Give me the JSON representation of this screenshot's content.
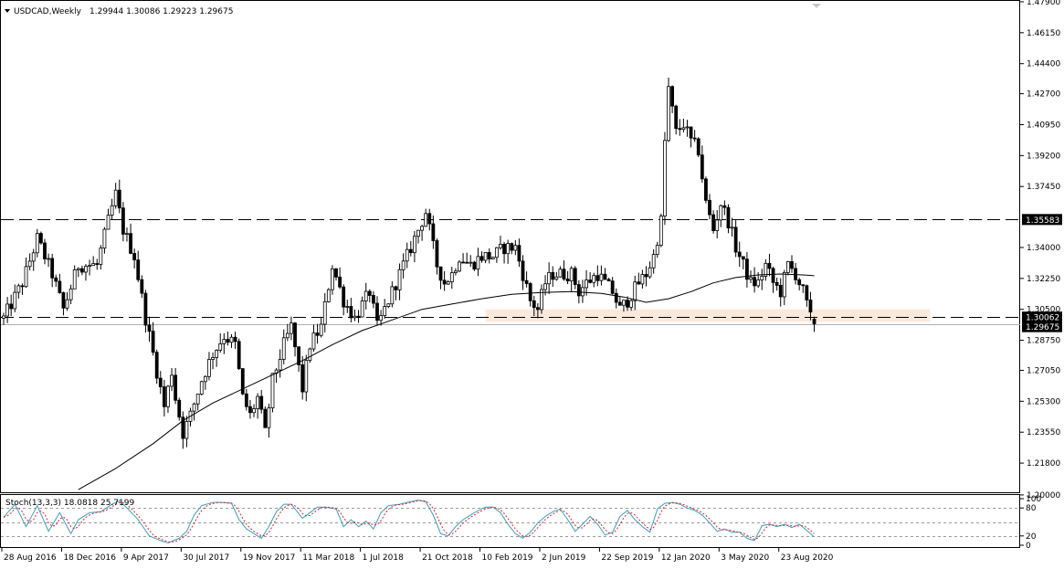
{
  "header": {
    "symbol": "USDCAD,Weekly",
    "ohlc": "1.29944 1.30086 1.29223 1.29675"
  },
  "colors": {
    "background": "#ffffff",
    "frame": "#000000",
    "candle_up_body": "#ffffff",
    "candle_down_body": "#000000",
    "candle_outline": "#000000",
    "moving_average": "#000000",
    "support_zone": "#fbe9dc",
    "stoch_main": "#3b9ec0",
    "stoch_signal": "#e0202a",
    "stoch_levels": "#9a9a9a",
    "price_label_bg": "#000000",
    "price_label_text": "#ffffff"
  },
  "chart_data": [
    {
      "type": "candlestick",
      "title": "USDCAD,Weekly",
      "timeframe": "Weekly",
      "ylim": [
        1.2015,
        1.4795
      ],
      "y_ticks": [
        "1.47900",
        "1.46150",
        "1.44400",
        "1.42700",
        "1.40950",
        "1.39200",
        "1.37450",
        "1.35583",
        "1.34000",
        "1.32250",
        "1.30500",
        "1.30062",
        "1.29675",
        "1.28750",
        "1.27050",
        "1.25300",
        "1.23550",
        "1.21800",
        "1.20000"
      ],
      "x_labels": [
        "28 Aug 2016",
        "18 Dec 2016",
        "9 Apr 2017",
        "30 Jul 2017",
        "19 Nov 2017",
        "11 Mar 2018",
        "1 Jul 2018",
        "21 Oct 2018",
        "10 Feb 2019",
        "2 Jun 2019",
        "22 Sep 2019",
        "12 Jan 2020",
        "3 May 2020",
        "23 Aug 2020"
      ],
      "x_label_start_week": [
        0,
        16,
        32,
        48,
        64,
        80,
        96,
        112,
        128,
        144,
        160,
        176,
        192,
        208
      ],
      "last_candle": {
        "open": 1.29944,
        "high": 1.30086,
        "low": 1.29223,
        "close": 1.29675
      },
      "price_path": [
        [
          0,
          1.3
        ],
        [
          5,
          1.32
        ],
        [
          9,
          1.345
        ],
        [
          13,
          1.325
        ],
        [
          16,
          1.305
        ],
        [
          20,
          1.33
        ],
        [
          25,
          1.33
        ],
        [
          28,
          1.355
        ],
        [
          30,
          1.37
        ],
        [
          32,
          1.35
        ],
        [
          35,
          1.335
        ],
        [
          38,
          1.3
        ],
        [
          40,
          1.28
        ],
        [
          43,
          1.25
        ],
        [
          45,
          1.27
        ],
        [
          46,
          1.255
        ],
        [
          48,
          1.235
        ],
        [
          50,
          1.245
        ],
        [
          53,
          1.265
        ],
        [
          56,
          1.28
        ],
        [
          59,
          1.29
        ],
        [
          62,
          1.285
        ],
        [
          64,
          1.255
        ],
        [
          66,
          1.245
        ],
        [
          68,
          1.255
        ],
        [
          70,
          1.235
        ],
        [
          72,
          1.265
        ],
        [
          75,
          1.285
        ],
        [
          77,
          1.295
        ],
        [
          80,
          1.26
        ],
        [
          82,
          1.285
        ],
        [
          85,
          1.295
        ],
        [
          88,
          1.33
        ],
        [
          91,
          1.31
        ],
        [
          94,
          1.3
        ],
        [
          98,
          1.315
        ],
        [
          100,
          1.295
        ],
        [
          103,
          1.31
        ],
        [
          106,
          1.325
        ],
        [
          109,
          1.34
        ],
        [
          111,
          1.35
        ],
        [
          113,
          1.36
        ],
        [
          114,
          1.35
        ],
        [
          116,
          1.33
        ],
        [
          118,
          1.32
        ],
        [
          120,
          1.325
        ],
        [
          122,
          1.335
        ],
        [
          125,
          1.33
        ],
        [
          128,
          1.335
        ],
        [
          131,
          1.335
        ],
        [
          134,
          1.34
        ],
        [
          137,
          1.34
        ],
        [
          139,
          1.325
        ],
        [
          141,
          1.31
        ],
        [
          143,
          1.305
        ],
        [
          145,
          1.32
        ],
        [
          147,
          1.325
        ],
        [
          150,
          1.325
        ],
        [
          152,
          1.325
        ],
        [
          154,
          1.315
        ],
        [
          156,
          1.32
        ],
        [
          159,
          1.325
        ],
        [
          161,
          1.32
        ],
        [
          163,
          1.315
        ],
        [
          165,
          1.305
        ],
        [
          167,
          1.31
        ],
        [
          170,
          1.32
        ],
        [
          172,
          1.325
        ],
        [
          174,
          1.335
        ],
        [
          176,
          1.355
        ],
        [
          177,
          1.4
        ],
        [
          178,
          1.43
        ],
        [
          180,
          1.405
        ],
        [
          182,
          1.41
        ],
        [
          184,
          1.4
        ],
        [
          186,
          1.395
        ],
        [
          188,
          1.365
        ],
        [
          190,
          1.35
        ],
        [
          192,
          1.365
        ],
        [
          194,
          1.355
        ],
        [
          196,
          1.34
        ],
        [
          198,
          1.33
        ],
        [
          200,
          1.32
        ],
        [
          202,
          1.32
        ],
        [
          204,
          1.33
        ],
        [
          206,
          1.32
        ],
        [
          208,
          1.315
        ],
        [
          210,
          1.33
        ],
        [
          212,
          1.325
        ],
        [
          214,
          1.315
        ],
        [
          216,
          1.3
        ],
        [
          217,
          1.29675
        ]
      ],
      "moving_average": [
        [
          20,
          1.203
        ],
        [
          30,
          1.215
        ],
        [
          40,
          1.229
        ],
        [
          48,
          1.242
        ],
        [
          56,
          1.252
        ],
        [
          64,
          1.26
        ],
        [
          72,
          1.268
        ],
        [
          80,
          1.276
        ],
        [
          88,
          1.285
        ],
        [
          96,
          1.293
        ],
        [
          104,
          1.299
        ],
        [
          112,
          1.305
        ],
        [
          120,
          1.308
        ],
        [
          128,
          1.311
        ],
        [
          136,
          1.3135
        ],
        [
          144,
          1.3145
        ],
        [
          152,
          1.315
        ],
        [
          160,
          1.314
        ],
        [
          166,
          1.312
        ],
        [
          172,
          1.309
        ],
        [
          178,
          1.311
        ],
        [
          184,
          1.315
        ],
        [
          190,
          1.32
        ],
        [
          196,
          1.323
        ],
        [
          202,
          1.3245
        ],
        [
          208,
          1.325
        ],
        [
          214,
          1.3245
        ],
        [
          217,
          1.324
        ]
      ],
      "horizontal_lines": [
        {
          "price": 1.35583,
          "label": "1.35583",
          "style": "dashed"
        },
        {
          "price": 1.30062,
          "label": "1.30062",
          "style": "dashed"
        },
        {
          "price": 1.29675,
          "label": "1.29675",
          "style": "solid"
        }
      ],
      "support_zone": {
        "start_week": 129,
        "end_week": 248,
        "price_low": 1.298,
        "price_high": 1.305
      }
    },
    {
      "type": "line",
      "title": "Stoch(13,3,3) 18.0818 25.7199",
      "series": [
        {
          "name": "Stoch main",
          "color": "#3b9ec0"
        },
        {
          "name": "Stoch signal",
          "color": "#e0202a",
          "style": "dashed"
        }
      ],
      "ylim": [
        0,
        100
      ],
      "levels": [
        20,
        50,
        80
      ],
      "y_ticks": [
        "100",
        "80",
        "20",
        "0"
      ],
      "stoch_path": [
        [
          0,
          60
        ],
        [
          3,
          88
        ],
        [
          6,
          40
        ],
        [
          9,
          85
        ],
        [
          12,
          30
        ],
        [
          15,
          70
        ],
        [
          18,
          25
        ],
        [
          20,
          55
        ],
        [
          23,
          70
        ],
        [
          26,
          72
        ],
        [
          29,
          88
        ],
        [
          31,
          95
        ],
        [
          33,
          80
        ],
        [
          36,
          55
        ],
        [
          39,
          20
        ],
        [
          42,
          10
        ],
        [
          44,
          5
        ],
        [
          47,
          15
        ],
        [
          49,
          30
        ],
        [
          51,
          65
        ],
        [
          53,
          85
        ],
        [
          56,
          92
        ],
        [
          58,
          92
        ],
        [
          61,
          90
        ],
        [
          63,
          55
        ],
        [
          65,
          35
        ],
        [
          67,
          25
        ],
        [
          69,
          15
        ],
        [
          71,
          40
        ],
        [
          73,
          72
        ],
        [
          75,
          88
        ],
        [
          77,
          88
        ],
        [
          80,
          58
        ],
        [
          82,
          70
        ],
        [
          84,
          82
        ],
        [
          86,
          82
        ],
        [
          89,
          78
        ],
        [
          91,
          40
        ],
        [
          93,
          55
        ],
        [
          95,
          40
        ],
        [
          97,
          52
        ],
        [
          99,
          35
        ],
        [
          101,
          70
        ],
        [
          103,
          85
        ],
        [
          106,
          88
        ],
        [
          108,
          92
        ],
        [
          111,
          97
        ],
        [
          113,
          93
        ],
        [
          115,
          65
        ],
        [
          117,
          25
        ],
        [
          119,
          20
        ],
        [
          121,
          40
        ],
        [
          123,
          55
        ],
        [
          126,
          70
        ],
        [
          129,
          82
        ],
        [
          131,
          82
        ],
        [
          133,
          70
        ],
        [
          135,
          45
        ],
        [
          137,
          25
        ],
        [
          139,
          15
        ],
        [
          141,
          28
        ],
        [
          143,
          48
        ],
        [
          145,
          62
        ],
        [
          147,
          72
        ],
        [
          149,
          78
        ],
        [
          151,
          55
        ],
        [
          153,
          30
        ],
        [
          155,
          45
        ],
        [
          157,
          62
        ],
        [
          159,
          45
        ],
        [
          161,
          22
        ],
        [
          163,
          28
        ],
        [
          165,
          62
        ],
        [
          167,
          75
        ],
        [
          169,
          55
        ],
        [
          171,
          40
        ],
        [
          173,
          28
        ],
        [
          175,
          78
        ],
        [
          177,
          90
        ],
        [
          179,
          92
        ],
        [
          181,
          88
        ],
        [
          183,
          80
        ],
        [
          185,
          75
        ],
        [
          187,
          65
        ],
        [
          189,
          48
        ],
        [
          191,
          30
        ],
        [
          193,
          35
        ],
        [
          195,
          28
        ],
        [
          197,
          28
        ],
        [
          199,
          15
        ],
        [
          201,
          10
        ],
        [
          203,
          42
        ],
        [
          205,
          45
        ],
        [
          207,
          40
        ],
        [
          209,
          45
        ],
        [
          211,
          38
        ],
        [
          213,
          45
        ],
        [
          215,
          32
        ],
        [
          217,
          18
        ]
      ]
    }
  ]
}
